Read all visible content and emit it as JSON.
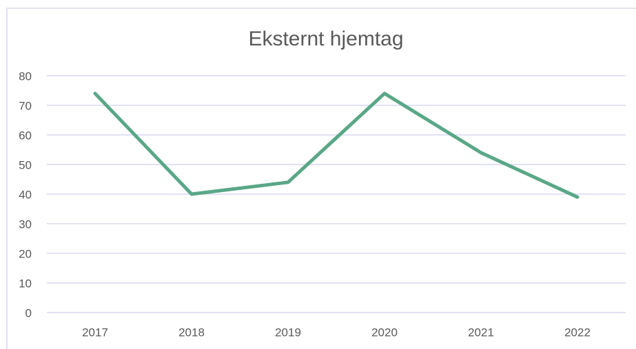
{
  "chart_data": {
    "type": "line",
    "title": "Eksternt hjemtag",
    "categories": [
      "2017",
      "2018",
      "2019",
      "2020",
      "2021",
      "2022"
    ],
    "series": [
      {
        "name": "Eksternt hjemtag",
        "color": "#5aa787",
        "values": [
          74,
          40,
          44,
          74,
          54,
          39
        ]
      }
    ],
    "ylim": [
      0,
      80
    ],
    "yticks": [
      0,
      10,
      20,
      30,
      40,
      50,
      60,
      70,
      80
    ],
    "grid": true
  }
}
